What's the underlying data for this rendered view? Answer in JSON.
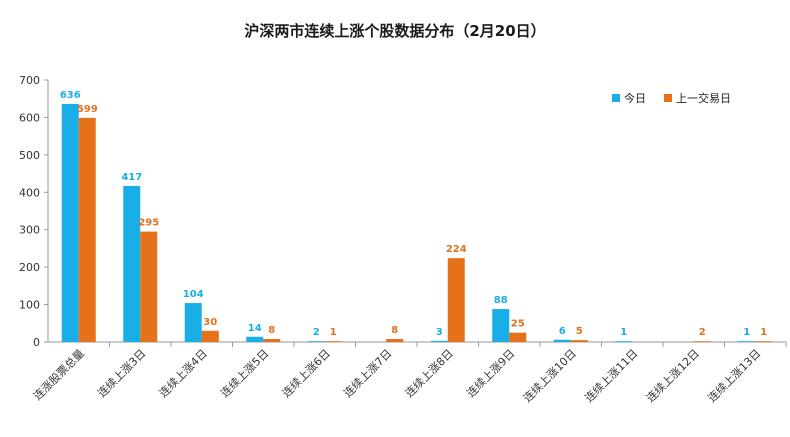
{
  "chart_data": {
    "type": "bar",
    "title": "沪深两市连续上涨个股数据分布（2月20日）",
    "xlabel": "",
    "ylabel": "",
    "ylim": [
      0,
      700
    ],
    "yticks": [
      0,
      100,
      200,
      300,
      400,
      500,
      600,
      700
    ],
    "grid": false,
    "legend_position": "top-right",
    "categories": [
      "连涨股票总量",
      "连续上涨3日",
      "连续上涨4日",
      "连续上涨5日",
      "连续上涨6日",
      "连续上涨7日",
      "连续上涨8日",
      "连续上涨9日",
      "连续上涨10日",
      "连续上涨11日",
      "连续上涨12日",
      "连续上涨13日"
    ],
    "series": [
      {
        "name": "今日",
        "color": "#1AAEE6",
        "values": [
          636,
          417,
          104,
          14,
          2,
          null,
          3,
          88,
          6,
          1,
          null,
          1
        ]
      },
      {
        "name": "上一交易日",
        "color": "#E5711B",
        "values": [
          599,
          295,
          30,
          8,
          1,
          8,
          224,
          25,
          5,
          null,
          2,
          1
        ]
      }
    ]
  }
}
